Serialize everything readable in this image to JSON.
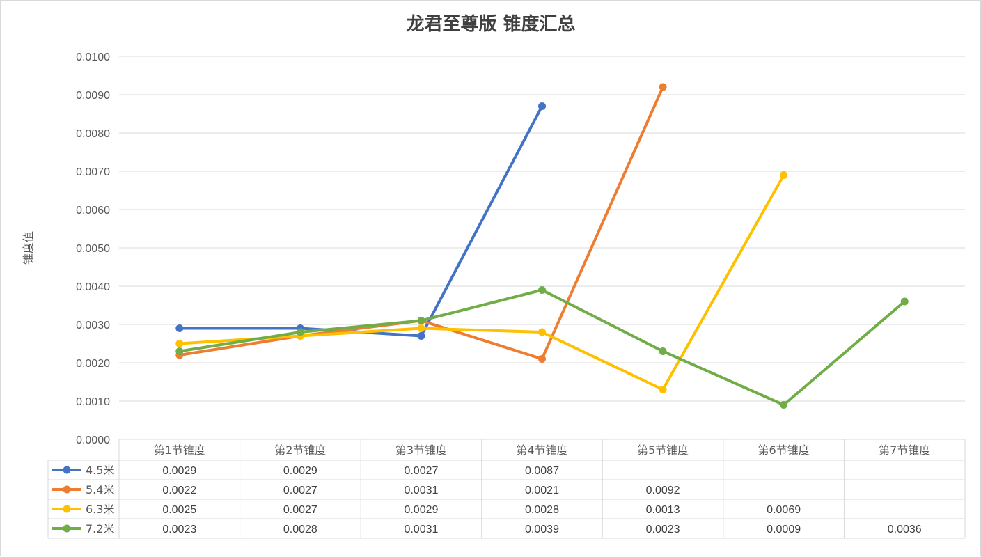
{
  "chart_data": {
    "type": "line",
    "title": "龙君至尊版  锥度汇总",
    "ylabel": "锥度值",
    "xlabel": "",
    "ylim": [
      0,
      0.01
    ],
    "yticks": [
      "0.0000",
      "0.0010",
      "0.0020",
      "0.0030",
      "0.0040",
      "0.0050",
      "0.0060",
      "0.0070",
      "0.0080",
      "0.0090",
      "0.0100"
    ],
    "categories": [
      "第1节锥度",
      "第2节锥度",
      "第3节锥度",
      "第4节锥度",
      "第5节锥度",
      "第6节锥度",
      "第7节锥度"
    ],
    "grid": true,
    "legend": "data-table",
    "series": [
      {
        "name": "4.5米",
        "color": "#4472c4",
        "values": [
          0.0029,
          0.0029,
          0.0027,
          0.0087,
          null,
          null,
          null
        ],
        "labels": [
          "0.0029",
          "0.0029",
          "0.0027",
          "0.0087",
          "",
          "",
          ""
        ]
      },
      {
        "name": "5.4米",
        "color": "#ed7d31",
        "values": [
          0.0022,
          0.0027,
          0.0031,
          0.0021,
          0.0092,
          null,
          null
        ],
        "labels": [
          "0.0022",
          "0.0027",
          "0.0031",
          "0.0021",
          "0.0092",
          "",
          ""
        ]
      },
      {
        "name": "6.3米",
        "color": "#ffc000",
        "values": [
          0.0025,
          0.0027,
          0.0029,
          0.0028,
          0.0013,
          0.0069,
          null
        ],
        "labels": [
          "0.0025",
          "0.0027",
          "0.0029",
          "0.0028",
          "0.0013",
          "0.0069",
          ""
        ]
      },
      {
        "name": "7.2米",
        "color": "#70ad47",
        "values": [
          0.0023,
          0.0028,
          0.0031,
          0.0039,
          0.0023,
          0.0009,
          0.0036
        ],
        "labels": [
          "0.0023",
          "0.0028",
          "0.0031",
          "0.0039",
          "0.0023",
          "0.0009",
          "0.0036"
        ]
      }
    ]
  }
}
